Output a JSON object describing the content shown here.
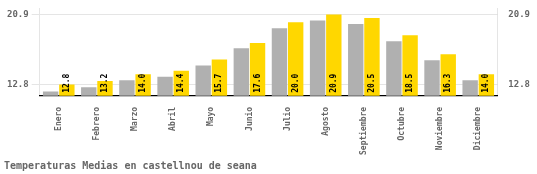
{
  "chart_data": {
    "type": "bar",
    "title": "Temperaturas Medias en castellnou de seana",
    "categories": [
      "Enero",
      "Febrero",
      "Marzo",
      "Abril",
      "Mayo",
      "Junio",
      "Julio",
      "Agosto",
      "Septiembre",
      "Octubre",
      "Noviembre",
      "Diciembre"
    ],
    "series": [
      {
        "color": "#B0B0B0",
        "values": [
          12.0,
          12.5,
          13.3,
          13.7,
          15.0,
          17.0,
          19.3,
          20.2,
          19.8,
          17.8,
          15.6,
          13.3
        ]
      },
      {
        "color": "#FFD700",
        "values": [
          12.8,
          13.2,
          14.0,
          14.4,
          15.7,
          17.6,
          20.0,
          20.9,
          20.5,
          18.5,
          16.3,
          14.0
        ],
        "value_labels": [
          "12.8",
          "13.2",
          "14.0",
          "14.4",
          "15.7",
          "17.6",
          "20.0",
          "20.9",
          "20.5",
          "18.5",
          "16.3",
          "14.0"
        ],
        "data_labels": true
      }
    ],
    "ylim": [
      11.5,
      21.6
    ],
    "yticks": [
      12.8,
      20.9
    ],
    "y2lim": [
      11.5,
      21.6
    ],
    "y2ticks": [
      12.8,
      20.9
    ],
    "grid": true
  }
}
